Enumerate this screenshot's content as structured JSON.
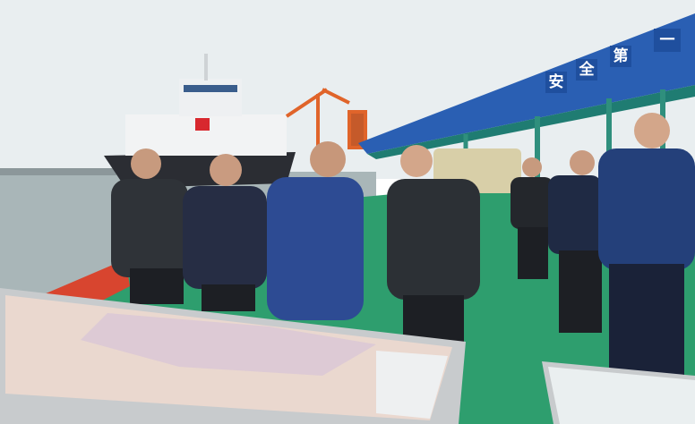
{
  "signs": {
    "characters": [
      "安",
      "全",
      "第",
      "一"
    ]
  }
}
